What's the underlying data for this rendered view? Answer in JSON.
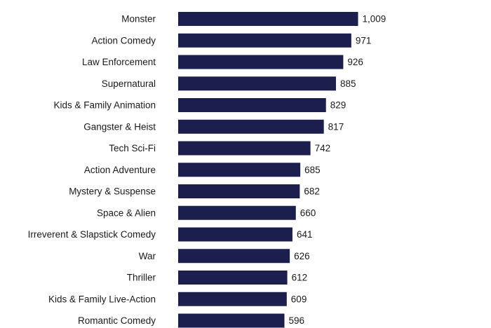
{
  "chart_data": {
    "type": "bar",
    "orientation": "horizontal",
    "title": "",
    "xlabel": "",
    "ylabel": "",
    "categories": [
      "Monster",
      "Action Comedy",
      "Law Enforcement",
      "Supernatural",
      "Kids & Family Animation",
      "Gangster & Heist",
      "Tech Sci-Fi",
      "Action Adventure",
      "Mystery & Suspense",
      "Space & Alien",
      "Irreverent & Slapstick Comedy",
      "War",
      "Thriller",
      "Kids & Family Live-Action",
      "Romantic Comedy"
    ],
    "values": [
      1009,
      971,
      926,
      885,
      829,
      817,
      742,
      685,
      682,
      660,
      641,
      626,
      612,
      609,
      596
    ],
    "value_labels": [
      "1,009",
      "971",
      "926",
      "885",
      "829",
      "817",
      "742",
      "685",
      "682",
      "660",
      "641",
      "626",
      "612",
      "609",
      "596"
    ],
    "grid": false,
    "bar_color": "#1c1f4d"
  }
}
